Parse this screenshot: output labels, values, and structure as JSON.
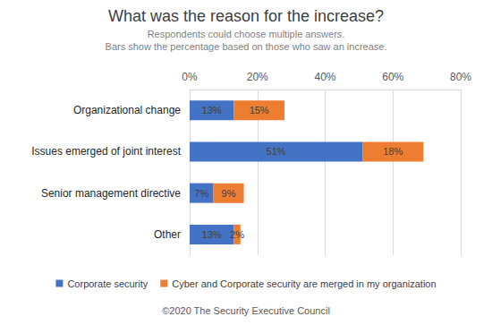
{
  "chart_data": {
    "type": "bar",
    "title": "What was the reason for the increase?",
    "subtitle": [
      "Respondents could choose multiple answers.",
      "Bars show the percentage based on those who saw an increase."
    ],
    "annotations": [
      "©2020 The Security Executive Council"
    ],
    "orientation": "horizontal",
    "stacked": true,
    "data_labels": true,
    "grid": true,
    "legend": "bottom",
    "categories": [
      "Organizational change",
      "Issues emerged of joint interest",
      "Senior management directive",
      "Other"
    ],
    "series": [
      {
        "name": "Corporate security",
        "color": "#4472c4",
        "values": [
          13,
          51,
          7,
          13
        ],
        "value_labels": [
          "13%",
          "51%",
          "7%",
          "13%"
        ]
      },
      {
        "name": "Cyber and Corporate security are merged in my organization",
        "color": "#ed7d31",
        "values": [
          15,
          18,
          9,
          2
        ],
        "value_labels": [
          "15%",
          "18%",
          "9%",
          "2%"
        ]
      }
    ],
    "xlim": [
      0,
      80
    ],
    "xticks": [
      {
        "value": 0,
        "label": "0%"
      },
      {
        "value": 20,
        "label": "20%"
      },
      {
        "value": 40,
        "label": "40%"
      },
      {
        "value": 60,
        "label": "60%"
      },
      {
        "value": 80,
        "label": "80%"
      }
    ]
  }
}
